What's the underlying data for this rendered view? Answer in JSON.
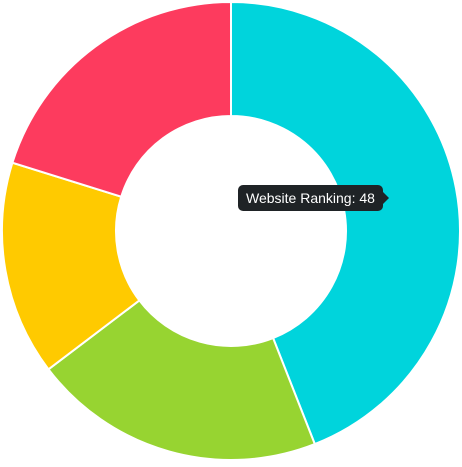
{
  "chart_data": {
    "type": "pie",
    "variant": "doughnut",
    "series": [
      {
        "value": 48,
        "color": "#00d4dc"
      },
      {
        "value": 22.5,
        "color": "#97d431"
      },
      {
        "value": 16.5,
        "color": "#ffca00"
      },
      {
        "value": 22,
        "color": "#fd3b5e"
      }
    ],
    "tooltip": {
      "label": "Website Ranking",
      "value": 48,
      "text": "Website Ranking: 48"
    }
  }
}
